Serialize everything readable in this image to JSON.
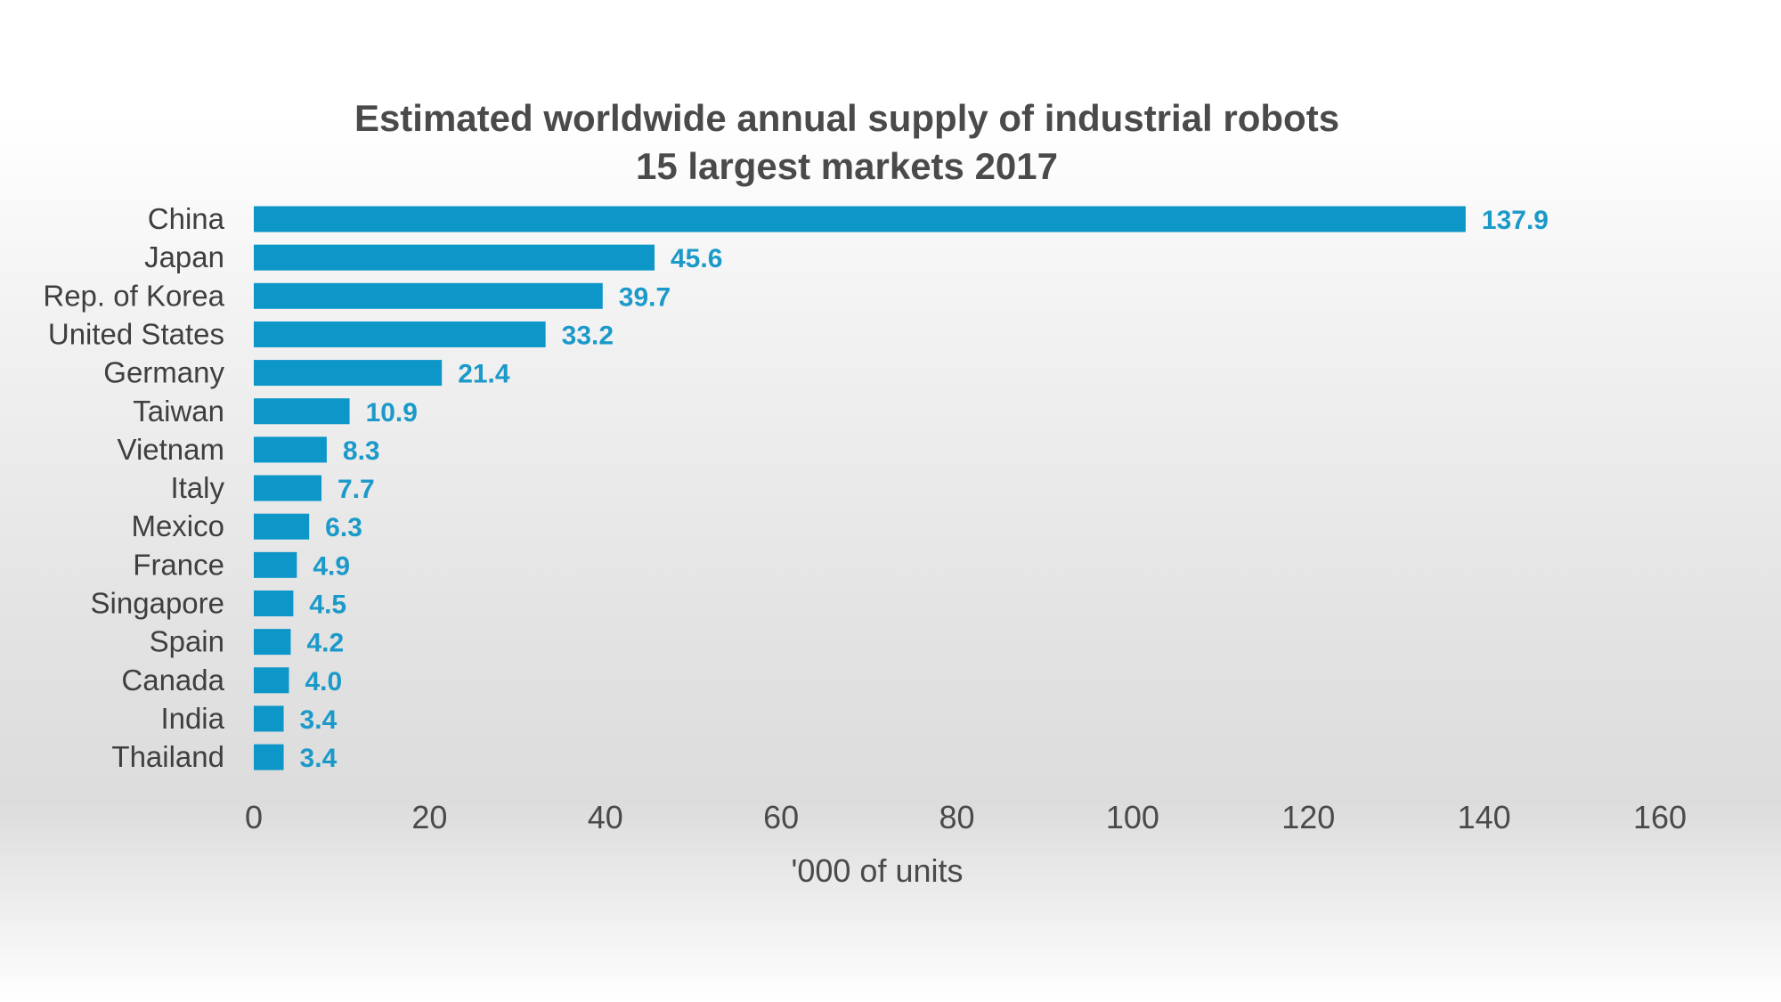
{
  "chart_data": {
    "type": "bar",
    "orientation": "horizontal",
    "title": "Estimated worldwide annual supply of industrial robots",
    "subtitle": "15 largest markets 2017",
    "categories": [
      "China",
      "Japan",
      "Rep. of Korea",
      "United States",
      "Germany",
      "Taiwan",
      "Vietnam",
      "Italy",
      "Mexico",
      "France",
      "Singapore",
      "Spain",
      "Canada",
      "India",
      "Thailand"
    ],
    "values": [
      137.9,
      45.6,
      39.7,
      33.2,
      21.4,
      10.9,
      8.3,
      7.7,
      6.3,
      4.9,
      4.5,
      4.2,
      4.0,
      3.4,
      3.4
    ],
    "value_labels": [
      "137.9",
      "45.6",
      "39.7",
      "33.2",
      "21.4",
      "10.9",
      "8.3",
      "7.7",
      "6.3",
      "4.9",
      "4.5",
      "4.2",
      "4.0",
      "3.4",
      "3.4"
    ],
    "xlabel": "'000 of units",
    "ylabel": "",
    "xlim": [
      0,
      160
    ],
    "xticks": [
      "0",
      "20",
      "40",
      "60",
      "80",
      "100",
      "120",
      "140",
      "160"
    ],
    "grid": false,
    "legend": "none",
    "bar_color": "#0d96c8",
    "value_label_color": "#1b9ac9"
  }
}
